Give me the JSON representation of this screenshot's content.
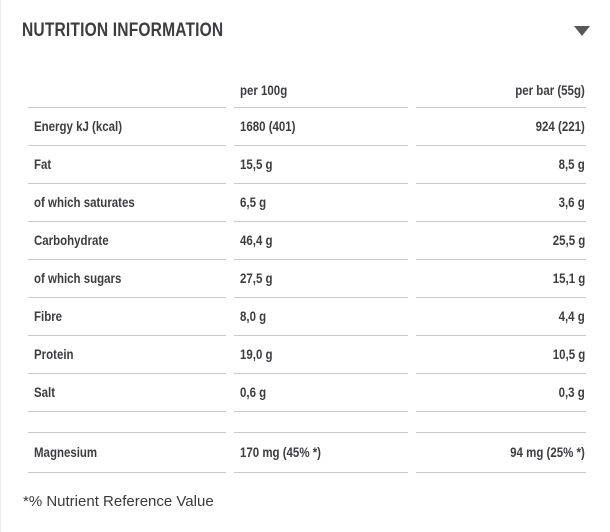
{
  "header": {
    "title": "NUTRITION INFORMATION",
    "icon": "chevron-down-icon"
  },
  "colors": {
    "background": "#ffffff",
    "text": "#3d3d40",
    "line": "#c9c9c9",
    "chevron": "#59565c"
  },
  "table": {
    "columns": [
      "",
      "per 100g",
      "per bar (55g)"
    ],
    "rows": [
      {
        "label": "Energy kJ (kcal)",
        "per_100g": "1680 (401)",
        "per_bar": "924 (221)"
      },
      {
        "label": "Fat",
        "per_100g": "15,5 g",
        "per_bar": "8,5 g"
      },
      {
        "label": "of which saturates",
        "per_100g": "6,5 g",
        "per_bar": "3,6 g"
      },
      {
        "label": "Carbohydrate",
        "per_100g": "46,4 g",
        "per_bar": "25,5 g"
      },
      {
        "label": "of which sugars",
        "per_100g": "27,5 g",
        "per_bar": "15,1 g"
      },
      {
        "label": "Fibre",
        "per_100g": "8,0 g",
        "per_bar": "4,4 g"
      },
      {
        "label": "Protein",
        "per_100g": "19,0 g",
        "per_bar": "10,5 g"
      },
      {
        "label": "Salt",
        "per_100g": "0,6 g",
        "per_bar": "0,3 g"
      },
      {
        "label": "Magnesium",
        "per_100g": "170 mg (45% *)",
        "per_bar": "94 mg (25% *)"
      }
    ]
  },
  "footer": {
    "note": "*% Nutrient Reference Value"
  }
}
